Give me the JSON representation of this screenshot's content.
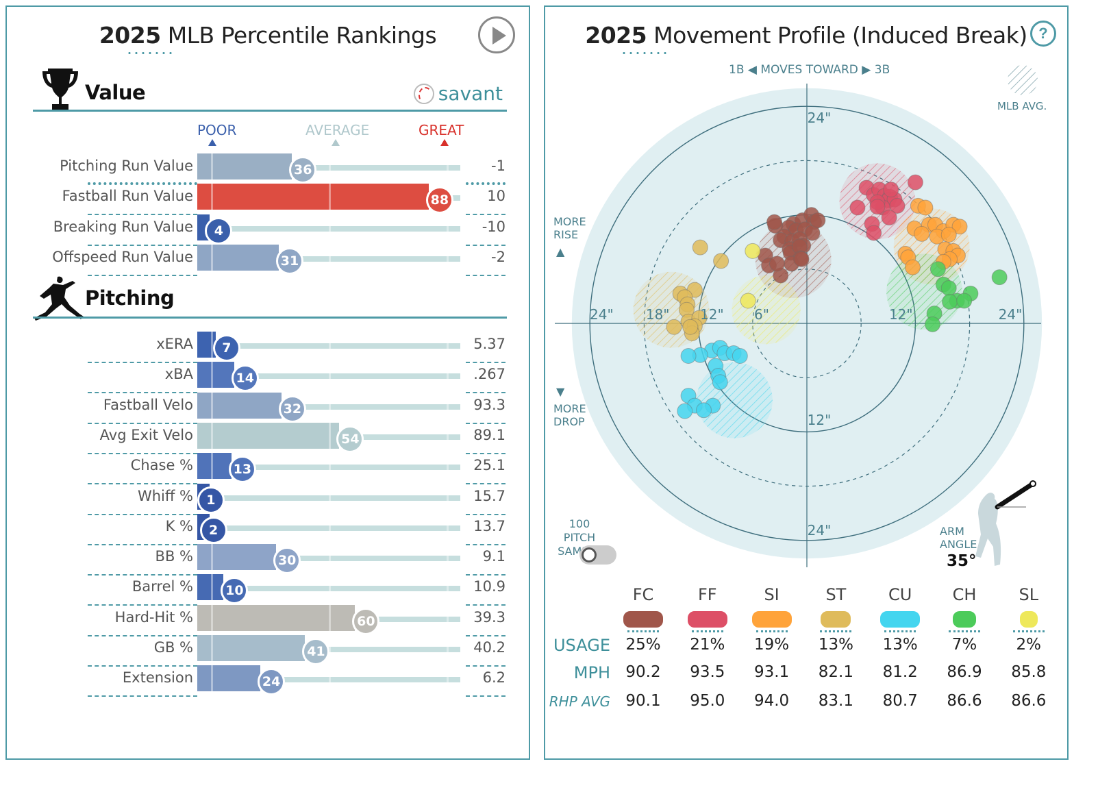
{
  "left": {
    "title_year": "2025",
    "title_rest": " MLB Percentile Rankings",
    "play_label": "Play",
    "value_section": "Value",
    "pitching_section": "Pitching",
    "brand": "savant",
    "scale": {
      "poor": "POOR",
      "average": "AVERAGE",
      "great": "GREAT"
    },
    "colors": {
      "poor": "#3a5fab",
      "average": "#b4ccd1",
      "great": "#d44a3c",
      "neutral": "#bdbbb5"
    },
    "value_rows": [
      {
        "label": "Pitching Run Value",
        "pct": 36,
        "value": "-1",
        "color": "#9aafc4"
      },
      {
        "label": "Fastball Run Value",
        "pct": 88,
        "value": "10",
        "color": "#dd4d41"
      },
      {
        "label": "Breaking Run Value",
        "pct": 4,
        "value": "-10",
        "color": "#3a5fab"
      },
      {
        "label": "Offspeed Run Value",
        "pct": 31,
        "value": "-2",
        "color": "#8fa6c5"
      }
    ],
    "pitching_rows": [
      {
        "label": "xERA",
        "pct": 7,
        "value": "5.37",
        "color": "#3d63b0"
      },
      {
        "label": "xBA",
        "pct": 14,
        "value": ".267",
        "color": "#5376bb"
      },
      {
        "label": "Fastball Velo",
        "pct": 32,
        "value": "93.3",
        "color": "#8fa6c5"
      },
      {
        "label": "Avg Exit Velo",
        "pct": 54,
        "value": "89.1",
        "color": "#b4cccf"
      },
      {
        "label": "Chase %",
        "pct": 13,
        "value": "25.1",
        "color": "#5073b9"
      },
      {
        "label": "Whiff %",
        "pct": 1,
        "value": "15.7",
        "color": "#3556a5"
      },
      {
        "label": "K %",
        "pct": 2,
        "value": "13.7",
        "color": "#3556a5"
      },
      {
        "label": "BB %",
        "pct": 30,
        "value": "9.1",
        "color": "#8ea4c8"
      },
      {
        "label": "Barrel %",
        "pct": 10,
        "value": "10.9",
        "color": "#466ab3"
      },
      {
        "label": "Hard-Hit %",
        "pct": 60,
        "value": "39.3",
        "color": "#bdbbb5"
      },
      {
        "label": "GB %",
        "pct": 41,
        "value": "40.2",
        "color": "#a6bccb"
      },
      {
        "label": "Extension",
        "pct": 24,
        "value": "6.2",
        "color": "#7e98c2"
      }
    ]
  },
  "right": {
    "title_year": "2025",
    "title_rest": " Movement Profile (Induced Break)",
    "help": "?",
    "direction": {
      "left": "1B",
      "mid": "MOVES TOWARD",
      "right": "3B"
    },
    "mlb_avg": "MLB AVG.",
    "more_rise": [
      "MORE",
      "RISE"
    ],
    "more_drop": [
      "MORE",
      "DROP"
    ],
    "sample": [
      "100 PITCH",
      "SAMPLE"
    ],
    "arm_angle_label": [
      "ARM",
      "ANGLE"
    ],
    "arm_angle": "35°",
    "ring_labels": {
      "r24": "24\"",
      "r18": "18\"",
      "r12": "12\"",
      "r6": "6\""
    },
    "rows": {
      "usage": "USAGE",
      "mph": "MPH",
      "rhp": "RHP AVG"
    },
    "pitches": [
      {
        "abbr": "FC",
        "color": "#a0564a",
        "usage": "25%",
        "mph": "90.2",
        "rhp": "90.1"
      },
      {
        "abbr": "FF",
        "color": "#dd4f66",
        "usage": "21%",
        "mph": "93.5",
        "rhp": "95.0"
      },
      {
        "abbr": "SI",
        "color": "#ffa33a",
        "usage": "19%",
        "mph": "93.1",
        "rhp": "94.0"
      },
      {
        "abbr": "ST",
        "color": "#dfbb5b",
        "usage": "13%",
        "mph": "82.1",
        "rhp": "83.1"
      },
      {
        "abbr": "CU",
        "color": "#44d5ef",
        "usage": "13%",
        "mph": "81.2",
        "rhp": "80.7"
      },
      {
        "abbr": "CH",
        "color": "#4ccb5a",
        "usage": "7%",
        "mph": "86.9",
        "rhp": "86.6"
      },
      {
        "abbr": "SL",
        "color": "#eee85b",
        "usage": "2%",
        "mph": "85.8",
        "rhp": "86.6"
      }
    ],
    "chart_data": {
      "type": "scatter",
      "title": "2025 Movement Profile (Induced Break)",
      "xlabel": "1B ◀ MOVES TOWARD ▶ 3B",
      "ylabel": "MORE RISE / MORE DROP",
      "xlim": [
        -24,
        24
      ],
      "ylim": [
        -24,
        24
      ],
      "unit": "inches",
      "series": [
        {
          "name": "FC",
          "color": "#a0564a",
          "mlb_avg": [
            -1.5,
            7
          ],
          "points": [
            [
              -1.5,
              11
            ],
            [
              -0.5,
              11.4
            ],
            [
              0.5,
              12
            ],
            [
              0.8,
              11.2
            ],
            [
              -2,
              10.6
            ],
            [
              -3.5,
              10.8
            ],
            [
              -3.6,
              11.2
            ],
            [
              -1.2,
              10.3
            ],
            [
              -0.2,
              10.4
            ],
            [
              0.6,
              10
            ],
            [
              1.2,
              11.4
            ],
            [
              -2.5,
              9.6
            ],
            [
              -2.9,
              9.2
            ],
            [
              -1.6,
              9.1
            ],
            [
              -0.8,
              9.3
            ],
            [
              -0.4,
              8.6
            ],
            [
              -1.9,
              8.2
            ],
            [
              -1.8,
              7.8
            ],
            [
              -0.8,
              8.5
            ],
            [
              -0.7,
              7.2
            ],
            [
              -4.6,
              7.5
            ],
            [
              -4.2,
              6.4
            ],
            [
              -1.7,
              6.6
            ],
            [
              -0.6,
              7.1
            ],
            [
              -2.9,
              5.3
            ],
            [
              -3.3,
              6.6
            ]
          ]
        },
        {
          "name": "FF",
          "color": "#dd4f66",
          "mlb_avg": [
            7.8,
            13.5
          ],
          "points": [
            [
              6.6,
              15
            ],
            [
              7.4,
              14.2
            ],
            [
              8,
              14.8
            ],
            [
              8.6,
              14.1
            ],
            [
              9.2,
              14
            ],
            [
              9,
              13.6
            ],
            [
              9.7,
              13.7
            ],
            [
              8.4,
              12.8
            ],
            [
              10,
              13
            ],
            [
              7.8,
              13.4
            ],
            [
              5.6,
              12.8
            ],
            [
              7.8,
              12.9
            ],
            [
              9.1,
              11.7
            ],
            [
              7.2,
              11
            ],
            [
              7.4,
              10
            ],
            [
              12,
              15.6
            ],
            [
              9.3,
              14.8
            ]
          ]
        },
        {
          "name": "SI",
          "color": "#ffa33a",
          "mlb_avg": [
            13.8,
            8.5
          ],
          "points": [
            [
              12.3,
              13
            ],
            [
              13.1,
              12.8
            ],
            [
              11.9,
              10.5
            ],
            [
              13.5,
              10.9
            ],
            [
              14.2,
              10.9
            ],
            [
              15.1,
              10.2
            ],
            [
              16.2,
              10.9
            ],
            [
              16.9,
              10.7
            ],
            [
              12.7,
              9.9
            ],
            [
              14.4,
              9.6
            ],
            [
              15.7,
              9.8
            ],
            [
              10.9,
              7.7
            ],
            [
              11.2,
              7.3
            ],
            [
              15.3,
              8.2
            ],
            [
              16.2,
              8
            ],
            [
              16.7,
              7.5
            ],
            [
              15.8,
              7.1
            ],
            [
              11.7,
              6.2
            ],
            [
              15.1,
              6.8
            ]
          ]
        },
        {
          "name": "ST",
          "color": "#dfbb5b",
          "mlb_avg": [
            -15,
            1.5
          ],
          "points": [
            [
              -11.8,
              8.4
            ],
            [
              -9.5,
              6.9
            ],
            [
              -12.4,
              3.7
            ],
            [
              -14,
              3.3
            ],
            [
              -13.5,
              2.9
            ],
            [
              -13.2,
              2.1
            ],
            [
              -13.3,
              1.5
            ],
            [
              -13.1,
              0.2
            ],
            [
              -11.9,
              0.6
            ],
            [
              -12.4,
              -0.3
            ],
            [
              -14.7,
              -0.4
            ],
            [
              -12.7,
              -1.1
            ],
            [
              -12.9,
              -0.4
            ]
          ]
        },
        {
          "name": "CU",
          "color": "#44d5ef",
          "mlb_avg": [
            -8,
            -8.5
          ],
          "points": [
            [
              -10.5,
              -3
            ],
            [
              -9.6,
              -2.7
            ],
            [
              -9.1,
              -3.3
            ],
            [
              -8.1,
              -3.3
            ],
            [
              -7.4,
              -3.6
            ],
            [
              -11.8,
              -3.5
            ],
            [
              -13.1,
              -3.6
            ],
            [
              -10.1,
              -4.7
            ],
            [
              -9.8,
              -5.8
            ],
            [
              -9.6,
              -6.5
            ],
            [
              -13.1,
              -8
            ],
            [
              -12.4,
              -9.1
            ],
            [
              -10.4,
              -9.1
            ],
            [
              -13.5,
              -9.7
            ],
            [
              -11.4,
              -9.6
            ]
          ]
        },
        {
          "name": "CH",
          "color": "#4ccb5a",
          "mlb_avg": [
            13,
            3.5
          ],
          "points": [
            [
              14.5,
              6
            ],
            [
              15.1,
              4.3
            ],
            [
              15.7,
              3.9
            ],
            [
              16.6,
              2.5
            ],
            [
              15.8,
              2.4
            ],
            [
              14.1,
              1.1
            ],
            [
              13.9,
              -0.1
            ],
            [
              21.3,
              5.1
            ],
            [
              18.1,
              3.3
            ],
            [
              17.4,
              2.5
            ]
          ]
        },
        {
          "name": "SL",
          "color": "#eee85b",
          "mlb_avg": [
            -4.5,
            1.5
          ],
          "points": [
            [
              -6,
              8
            ],
            [
              -6.5,
              2.5
            ]
          ]
        }
      ]
    }
  }
}
